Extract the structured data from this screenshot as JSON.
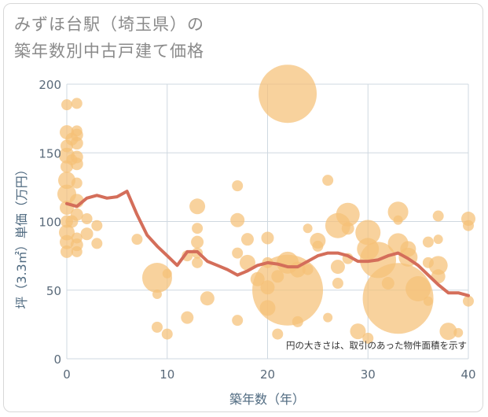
{
  "title_lines": [
    "みずほ台駅（埼玉県）の",
    "築年数別中古戸建て価格"
  ],
  "chart_data": {
    "type": "scatter",
    "title": "みずほ台駅（埼玉県）の築年数別中古戸建て価格",
    "xlabel": "築年数（年）",
    "ylabel": "坪（3.3㎡）単価（万円）",
    "xlim": [
      0,
      40
    ],
    "ylim": [
      0,
      200
    ],
    "xticks": [
      0,
      10,
      20,
      30,
      40
    ],
    "yticks": [
      0,
      50,
      100,
      150,
      200
    ],
    "grid": true,
    "annotation": "円の大きさは、取引のあった物件面積を示す",
    "colors": {
      "bubble": "#f5c177",
      "line": "#d46e5a",
      "grid": "#cfd8e0"
    },
    "bubbles": [
      {
        "x": 0,
        "y": 185,
        "s": 7
      },
      {
        "x": 0,
        "y": 165,
        "s": 9
      },
      {
        "x": 0,
        "y": 155,
        "s": 8
      },
      {
        "x": 0,
        "y": 148,
        "s": 10
      },
      {
        "x": 0,
        "y": 140,
        "s": 8
      },
      {
        "x": 0,
        "y": 130,
        "s": 11
      },
      {
        "x": 0,
        "y": 120,
        "s": 12
      },
      {
        "x": 0,
        "y": 110,
        "s": 9
      },
      {
        "x": 0,
        "y": 100,
        "s": 8
      },
      {
        "x": 0,
        "y": 92,
        "s": 10
      },
      {
        "x": 0,
        "y": 85,
        "s": 9
      },
      {
        "x": 0,
        "y": 78,
        "s": 8
      },
      {
        "x": 0.5,
        "y": 160,
        "s": 8
      },
      {
        "x": 0.5,
        "y": 145,
        "s": 7
      },
      {
        "x": 0.5,
        "y": 100,
        "s": 8
      },
      {
        "x": 1,
        "y": 186,
        "s": 7
      },
      {
        "x": 1,
        "y": 166,
        "s": 7
      },
      {
        "x": 1,
        "y": 163,
        "s": 8
      },
      {
        "x": 1,
        "y": 157,
        "s": 8
      },
      {
        "x": 1,
        "y": 147,
        "s": 8
      },
      {
        "x": 1,
        "y": 142,
        "s": 8
      },
      {
        "x": 1,
        "y": 128,
        "s": 7
      },
      {
        "x": 1,
        "y": 115,
        "s": 9
      },
      {
        "x": 1,
        "y": 105,
        "s": 8
      },
      {
        "x": 1,
        "y": 88,
        "s": 7
      },
      {
        "x": 1,
        "y": 83,
        "s": 8
      },
      {
        "x": 1,
        "y": 78,
        "s": 7
      },
      {
        "x": 2,
        "y": 102,
        "s": 7
      },
      {
        "x": 2,
        "y": 91,
        "s": 8
      },
      {
        "x": 3,
        "y": 97,
        "s": 7
      },
      {
        "x": 3,
        "y": 84,
        "s": 7
      },
      {
        "x": 7,
        "y": 87,
        "s": 7
      },
      {
        "x": 9,
        "y": 59,
        "s": 19
      },
      {
        "x": 9,
        "y": 47,
        "s": 6
      },
      {
        "x": 9,
        "y": 23,
        "s": 7
      },
      {
        "x": 10,
        "y": 62,
        "s": 6
      },
      {
        "x": 10,
        "y": 18,
        "s": 7
      },
      {
        "x": 12,
        "y": 30,
        "s": 8
      },
      {
        "x": 12,
        "y": 75,
        "s": 7
      },
      {
        "x": 13,
        "y": 111,
        "s": 10
      },
      {
        "x": 13,
        "y": 95,
        "s": 7
      },
      {
        "x": 13,
        "y": 85,
        "s": 8
      },
      {
        "x": 13,
        "y": 77,
        "s": 7
      },
      {
        "x": 13,
        "y": 70,
        "s": 7
      },
      {
        "x": 14,
        "y": 44,
        "s": 9
      },
      {
        "x": 17,
        "y": 126,
        "s": 7
      },
      {
        "x": 17,
        "y": 101,
        "s": 9
      },
      {
        "x": 17,
        "y": 77,
        "s": 7
      },
      {
        "x": 17,
        "y": 28,
        "s": 7
      },
      {
        "x": 18,
        "y": 87,
        "s": 8
      },
      {
        "x": 18,
        "y": 70,
        "s": 10
      },
      {
        "x": 19,
        "y": 58,
        "s": 9
      },
      {
        "x": 20,
        "y": 88,
        "s": 8
      },
      {
        "x": 20,
        "y": 70,
        "s": 7
      },
      {
        "x": 20,
        "y": 52,
        "s": 9
      },
      {
        "x": 20,
        "y": 37,
        "s": 10
      },
      {
        "x": 21,
        "y": 60,
        "s": 8
      },
      {
        "x": 21,
        "y": 18,
        "s": 7
      },
      {
        "x": 22,
        "y": 193,
        "s": 37
      },
      {
        "x": 22,
        "y": 50,
        "s": 45
      },
      {
        "x": 22,
        "y": 70,
        "s": 14
      },
      {
        "x": 23,
        "y": 65,
        "s": 10
      },
      {
        "x": 23,
        "y": 27,
        "s": 7
      },
      {
        "x": 24,
        "y": 95,
        "s": 6
      },
      {
        "x": 24,
        "y": 65,
        "s": 7
      },
      {
        "x": 25,
        "y": 86,
        "s": 10
      },
      {
        "x": 25,
        "y": 82,
        "s": 7
      },
      {
        "x": 26,
        "y": 130,
        "s": 7
      },
      {
        "x": 26,
        "y": 30,
        "s": 6
      },
      {
        "x": 27,
        "y": 97,
        "s": 16
      },
      {
        "x": 27,
        "y": 67,
        "s": 9
      },
      {
        "x": 27,
        "y": 55,
        "s": 7
      },
      {
        "x": 28,
        "y": 105,
        "s": 15
      },
      {
        "x": 28,
        "y": 73,
        "s": 7
      },
      {
        "x": 28,
        "y": 95,
        "s": 8
      },
      {
        "x": 29,
        "y": 20,
        "s": 10
      },
      {
        "x": 30,
        "y": 92,
        "s": 16
      },
      {
        "x": 30,
        "y": 80,
        "s": 14
      },
      {
        "x": 30,
        "y": 15,
        "s": 7
      },
      {
        "x": 31,
        "y": 72,
        "s": 23
      },
      {
        "x": 32,
        "y": 55,
        "s": 8
      },
      {
        "x": 33,
        "y": 107,
        "s": 13
      },
      {
        "x": 33,
        "y": 101,
        "s": 6
      },
      {
        "x": 33,
        "y": 84,
        "s": 13
      },
      {
        "x": 33,
        "y": 44,
        "s": 45
      },
      {
        "x": 34,
        "y": 80,
        "s": 10
      },
      {
        "x": 34,
        "y": 74,
        "s": 12
      },
      {
        "x": 35,
        "y": 51,
        "s": 16
      },
      {
        "x": 36,
        "y": 85,
        "s": 7
      },
      {
        "x": 36,
        "y": 70,
        "s": 7
      },
      {
        "x": 36,
        "y": 42,
        "s": 6
      },
      {
        "x": 37,
        "y": 104,
        "s": 7
      },
      {
        "x": 37,
        "y": 87,
        "s": 6
      },
      {
        "x": 37,
        "y": 68,
        "s": 12
      },
      {
        "x": 37,
        "y": 60,
        "s": 9
      },
      {
        "x": 38,
        "y": 20,
        "s": 11
      },
      {
        "x": 39,
        "y": 19,
        "s": 6
      },
      {
        "x": 40,
        "y": 102,
        "s": 9
      },
      {
        "x": 40,
        "y": 97,
        "s": 7
      },
      {
        "x": 40,
        "y": 42,
        "s": 7
      }
    ],
    "line": {
      "x": [
        0,
        1,
        2,
        3,
        4,
        5,
        6,
        7,
        8,
        9,
        10,
        11,
        12,
        13,
        14,
        15,
        16,
        17,
        18,
        19,
        20,
        21,
        22,
        23,
        24,
        25,
        26,
        27,
        28,
        29,
        30,
        31,
        32,
        33,
        34,
        35,
        36,
        37,
        38,
        39,
        40
      ],
      "y": [
        113,
        111,
        117,
        119,
        117,
        118,
        122,
        105,
        90,
        82,
        75,
        68,
        78,
        78,
        71,
        68,
        65,
        61,
        64,
        68,
        70,
        69,
        67,
        67,
        71,
        75,
        77,
        77,
        75,
        71,
        71,
        72,
        75,
        77,
        73,
        68,
        61,
        54,
        48,
        48,
        46
      ]
    }
  }
}
